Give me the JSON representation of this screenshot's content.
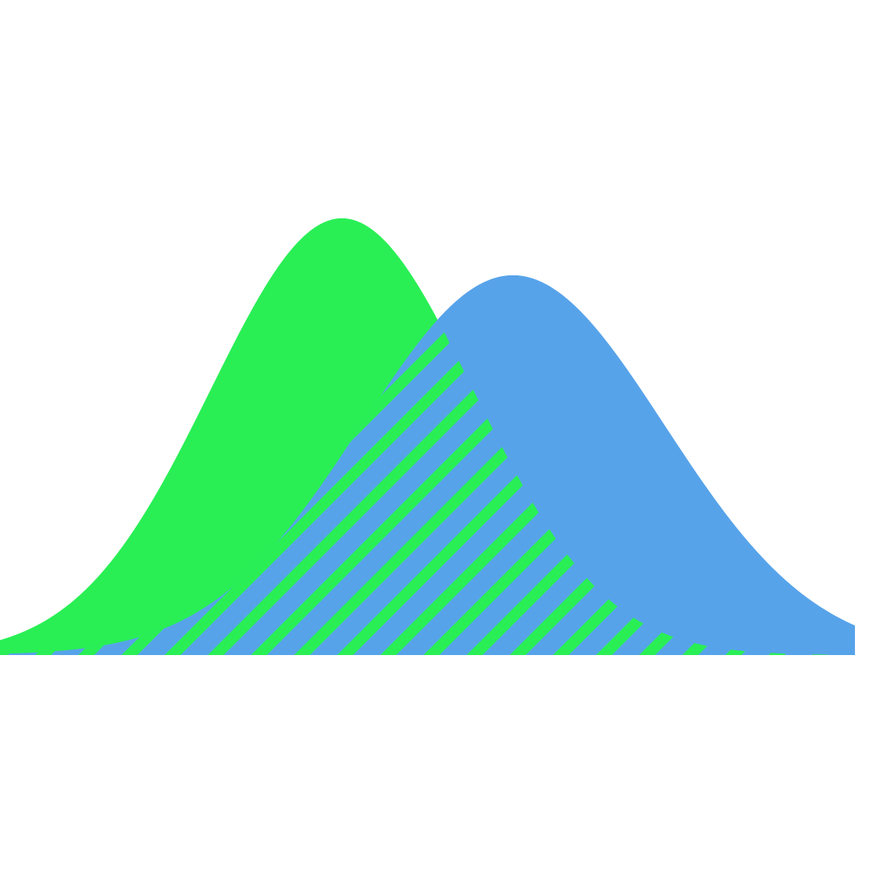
{
  "chart_data": {
    "type": "area",
    "title": "",
    "xlabel": "",
    "ylabel": "",
    "grid": false,
    "legend": "none",
    "axes_visible": false,
    "series": [
      {
        "distribution": "normal",
        "mean": 0,
        "std": 1,
        "color": "#29EF55",
        "fill": "solid"
      },
      {
        "distribution": "normal",
        "mean": 1.3,
        "std": 1.15,
        "color": "#57A3EA",
        "fill": "solid"
      }
    ],
    "overlap_region": {
      "fill": "hatched",
      "hatch_direction": "diagonal",
      "colors": [
        "#57A3EA",
        "#29EF55"
      ]
    },
    "xlim": [
      -2.6,
      3.9
    ]
  }
}
